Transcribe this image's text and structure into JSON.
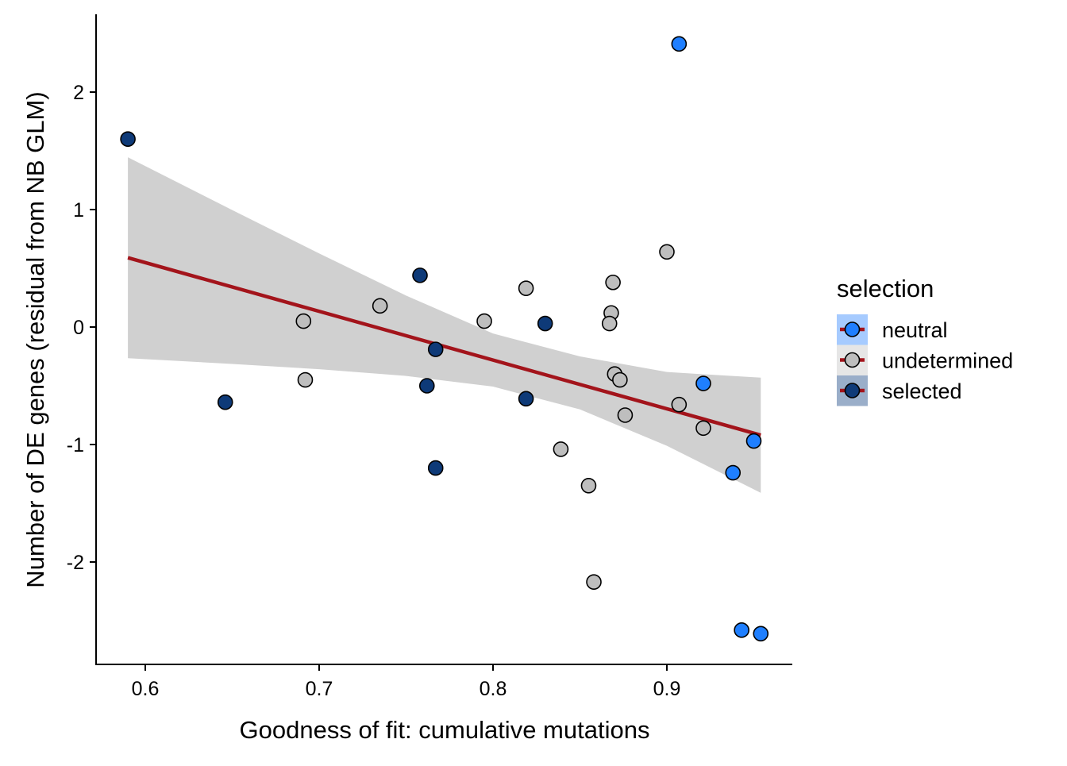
{
  "chart_data": {
    "type": "scatter",
    "title": "",
    "xlabel": "Goodness of fit: cumulative mutations",
    "ylabel": "Number of DE genes (residual from NB GLM)",
    "xlim": [
      0.572,
      0.973
    ],
    "ylim": [
      -2.85,
      2.65
    ],
    "xticks": [
      0.6,
      0.7,
      0.8,
      0.9
    ],
    "xtick_labels": [
      "0.6",
      "0.7",
      "0.8",
      "0.9"
    ],
    "yticks": [
      -2,
      -1,
      0,
      1,
      2
    ],
    "ytick_labels": [
      "-2",
      "-1",
      "0",
      "1",
      "2"
    ],
    "grid": false,
    "legend": {
      "title": "selection",
      "placement": "right",
      "entries": [
        {
          "label": "neutral",
          "color": "#1f7fff",
          "key_bg": "#a6cbff"
        },
        {
          "label": "undetermined",
          "color": "#bebebe",
          "key_bg": "#e6e6e6"
        },
        {
          "label": "selected",
          "color": "#0e3a78",
          "key_bg": "#9aaec9"
        }
      ]
    },
    "series": [
      {
        "name": "selected",
        "color": "#0e3a78",
        "points": [
          [
            0.59,
            1.6
          ],
          [
            0.758,
            0.44
          ],
          [
            0.83,
            0.03
          ],
          [
            0.767,
            -0.19
          ],
          [
            0.762,
            -0.5
          ],
          [
            0.819,
            -0.61
          ],
          [
            0.646,
            -0.64
          ],
          [
            0.767,
            -1.2
          ]
        ]
      },
      {
        "name": "neutral",
        "color": "#1f7fff",
        "points": [
          [
            0.907,
            2.41
          ],
          [
            0.921,
            -0.48
          ],
          [
            0.95,
            -0.97
          ],
          [
            0.938,
            -1.24
          ],
          [
            0.943,
            -2.58
          ],
          [
            0.954,
            -2.61
          ]
        ]
      },
      {
        "name": "undetermined",
        "color": "#bebebe",
        "points": [
          [
            0.691,
            0.05
          ],
          [
            0.692,
            -0.45
          ],
          [
            0.735,
            0.18
          ],
          [
            0.795,
            0.05
          ],
          [
            0.819,
            0.33
          ],
          [
            0.9,
            0.64
          ],
          [
            0.869,
            0.38
          ],
          [
            0.868,
            0.12
          ],
          [
            0.867,
            0.03
          ],
          [
            0.87,
            -0.4
          ],
          [
            0.873,
            -0.45
          ],
          [
            0.876,
            -0.75
          ],
          [
            0.907,
            -0.66
          ],
          [
            0.921,
            -0.86
          ],
          [
            0.839,
            -1.04
          ],
          [
            0.855,
            -1.35
          ],
          [
            0.858,
            -2.17
          ]
        ]
      }
    ],
    "fit_line": {
      "color": "#a3141b",
      "points": [
        [
          0.59,
          0.59
        ],
        [
          0.954,
          -0.92
        ]
      ]
    },
    "confidence_band": {
      "color": "#d0d0d0",
      "x": [
        0.59,
        0.65,
        0.7,
        0.75,
        0.8,
        0.85,
        0.9,
        0.954
      ],
      "upper": [
        1.445,
        0.996,
        0.627,
        0.268,
        -0.055,
        -0.25,
        -0.383,
        -0.431
      ],
      "lower": [
        -0.265,
        -0.314,
        -0.359,
        -0.416,
        -0.507,
        -0.701,
        -1.011,
        -1.411
      ]
    }
  }
}
